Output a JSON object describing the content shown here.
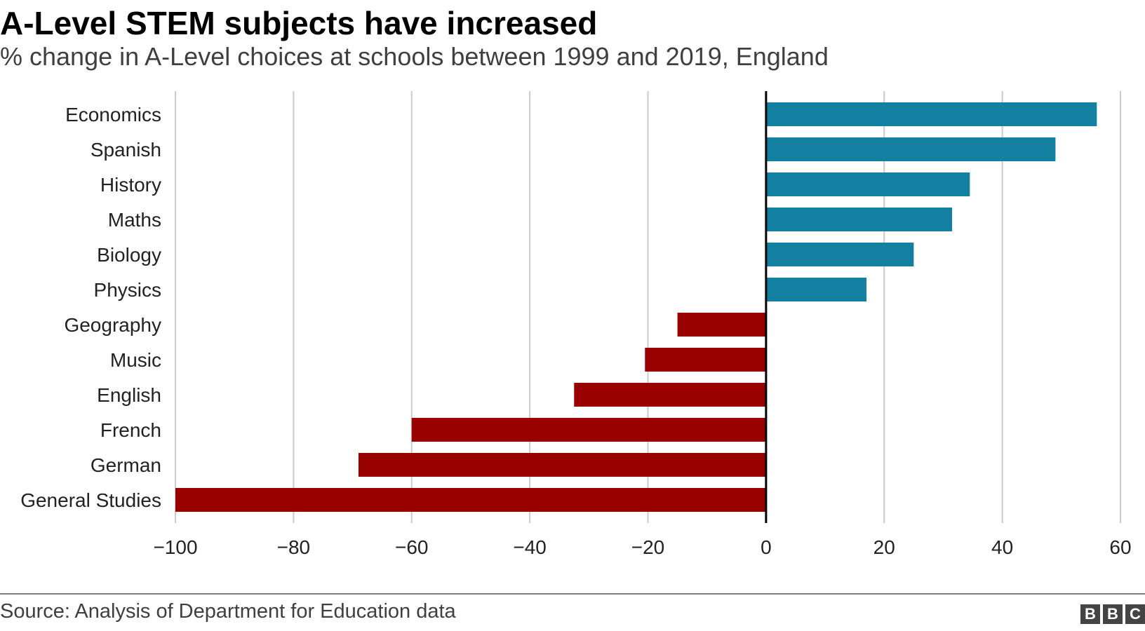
{
  "chart_data": {
    "type": "bar",
    "orientation": "horizontal",
    "title": "A-Level STEM subjects have increased",
    "subtitle": "% change in A-Level choices at schools between 1999 and 2019, England",
    "categories": [
      "Economics",
      "Spanish",
      "History",
      "Maths",
      "Biology",
      "Physics",
      "Geography",
      "Music",
      "English",
      "French",
      "German",
      "General Studies"
    ],
    "values": [
      56,
      49,
      34.5,
      31.5,
      25,
      17,
      -15,
      -20.5,
      -32.5,
      -60,
      -69,
      -100
    ],
    "xlim": [
      -100,
      60
    ],
    "xticks": [
      -100,
      -80,
      -60,
      -40,
      -20,
      0,
      20,
      40,
      60
    ],
    "xtick_labels": [
      "−100",
      "−80",
      "−60",
      "−40",
      "−20",
      "0",
      "20",
      "40",
      "60"
    ],
    "grid": true,
    "positive_color": "#1380A1",
    "negative_color": "#990000"
  },
  "footer": {
    "source": "Source: Analysis of Department for Education data",
    "logo_letters": [
      "B",
      "B",
      "C"
    ]
  }
}
